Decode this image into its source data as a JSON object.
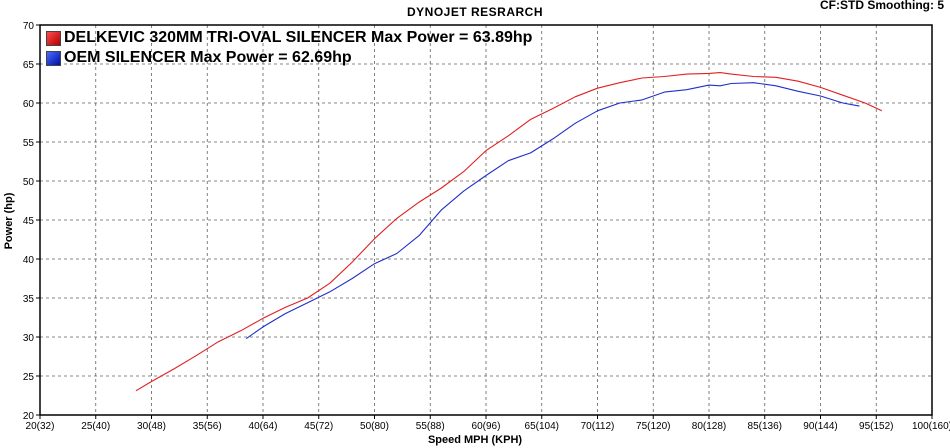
{
  "header": {
    "title": "DYNOJET RESRARCH",
    "corner": "CF:STD Smoothing: 5"
  },
  "chart_data": {
    "type": "line",
    "title": "DYNOJET RESRARCH",
    "xlabel": "Speed MPH (KPH)",
    "ylabel": "Power (hp)",
    "xlim": [
      20,
      100
    ],
    "ylim": [
      20,
      70
    ],
    "grid": true,
    "legend_position": "top-left",
    "x_ticks": [
      20,
      25,
      30,
      35,
      40,
      45,
      50,
      55,
      60,
      65,
      70,
      75,
      80,
      85,
      90,
      95,
      100
    ],
    "x_tick_labels": [
      "20(32)",
      "25(40)",
      "30(48)",
      "35(56)",
      "40(64)",
      "45(72)",
      "50(80)",
      "55(88)",
      "60(96)",
      "65(104)",
      "70(112)",
      "75(120)",
      "80(128)",
      "85(136)",
      "90(144)",
      "95(152)",
      "100(160)"
    ],
    "y_ticks": [
      20,
      25,
      30,
      35,
      40,
      45,
      50,
      55,
      60,
      65,
      70
    ],
    "y_tick_labels": [
      "20",
      "25",
      "30",
      "35",
      "40",
      "45",
      "50",
      "55",
      "60",
      "65",
      "70"
    ],
    "series": [
      {
        "name": "DELKEVIC 320MM TRI-OVAL SILENCER  Max Power = 63.89hp",
        "color": "#e02020",
        "swatch": [
          "#ff4b4b",
          "#b00000"
        ],
        "x": [
          28.6,
          30,
          32,
          34,
          36,
          38,
          40,
          42,
          44,
          46,
          48,
          50,
          52,
          54,
          56,
          58,
          60,
          62,
          64,
          66,
          68,
          70,
          72,
          74,
          76,
          78,
          80,
          81,
          82,
          84,
          86,
          88,
          90,
          92,
          94,
          95.5
        ],
        "y": [
          23.1,
          24.3,
          25.9,
          27.6,
          29.4,
          30.8,
          32.4,
          33.8,
          35.0,
          36.9,
          39.6,
          42.6,
          45.2,
          47.3,
          49.1,
          51.2,
          53.9,
          55.8,
          57.9,
          59.3,
          60.8,
          61.9,
          62.6,
          63.2,
          63.4,
          63.7,
          63.8,
          63.9,
          63.7,
          63.4,
          63.3,
          62.8,
          62.0,
          61.0,
          60.0,
          59.0
        ]
      },
      {
        "name": "OEM SILENCER Max Power = 62.69hp",
        "color": "#2030c8",
        "swatch": [
          "#4b6bff",
          "#0010a0"
        ],
        "x": [
          38.5,
          40,
          42,
          44,
          46,
          48,
          50,
          52,
          54,
          56,
          58,
          60,
          62,
          64,
          66,
          68,
          70,
          72,
          74,
          76,
          78,
          80,
          81,
          82,
          84,
          86,
          88,
          90,
          92,
          93.5
        ],
        "y": [
          29.8,
          31.3,
          33.0,
          34.4,
          35.8,
          37.5,
          39.4,
          40.7,
          43.0,
          46.3,
          48.7,
          50.7,
          52.6,
          53.6,
          55.4,
          57.4,
          59.0,
          60.0,
          60.4,
          61.4,
          61.7,
          62.3,
          62.2,
          62.5,
          62.6,
          62.2,
          61.5,
          60.9,
          60.0,
          59.6
        ]
      }
    ]
  }
}
